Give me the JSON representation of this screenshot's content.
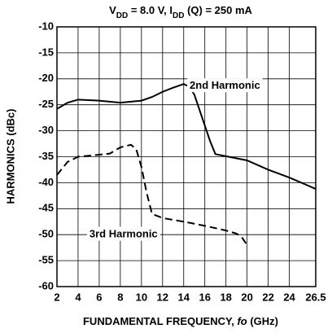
{
  "chart_data": {
    "type": "line",
    "title": [
      "V",
      "DD",
      " = 8.0 V, I",
      "DD",
      " (Q) = 250 mA"
    ],
    "xlabel": [
      "FUNDAMENTAL FREQUENCY, ",
      "fo",
      " (GHz)"
    ],
    "ylabel": "HARMONICS (dBc)",
    "xlim": [
      2,
      26.5
    ],
    "ylim": [
      -60,
      -10
    ],
    "xticks": [
      2,
      4,
      6,
      8,
      10,
      12,
      14,
      16,
      18,
      20,
      22,
      24,
      26.5
    ],
    "yticks": [
      -60,
      -55,
      -50,
      -45,
      -40,
      -35,
      -30,
      -25,
      -20,
      -15,
      -10
    ],
    "grid": true,
    "series": [
      {
        "name": "2nd Harmonic",
        "color": "#000000",
        "dash": false,
        "x": [
          2,
          3,
          4,
          6,
          8,
          10,
          11,
          12,
          13,
          14,
          14.5,
          15,
          15.5,
          16,
          16.5,
          17,
          18,
          20,
          22,
          24,
          26.5
        ],
        "values": [
          -25.8,
          -24.6,
          -24,
          -24.2,
          -24.6,
          -24.2,
          -23.5,
          -22.5,
          -21.7,
          -21,
          -21.5,
          -23,
          -26,
          -29,
          -32,
          -34.5,
          -34.9,
          -35.7,
          -37.5,
          -39,
          -41.2
        ]
      },
      {
        "name": "3rd Harmonic",
        "color": "#000000",
        "dash": true,
        "x": [
          2,
          3,
          4,
          6,
          7,
          8,
          9,
          9.5,
          10,
          10.5,
          11,
          12,
          14,
          16,
          18,
          19,
          19.5,
          20
        ],
        "values": [
          -38.5,
          -36,
          -35,
          -34.6,
          -34.4,
          -33.2,
          -32.7,
          -33.5,
          -37,
          -42,
          -46,
          -46.8,
          -47.5,
          -48.3,
          -49.2,
          -49.8,
          -50.5,
          -52
        ]
      }
    ]
  }
}
